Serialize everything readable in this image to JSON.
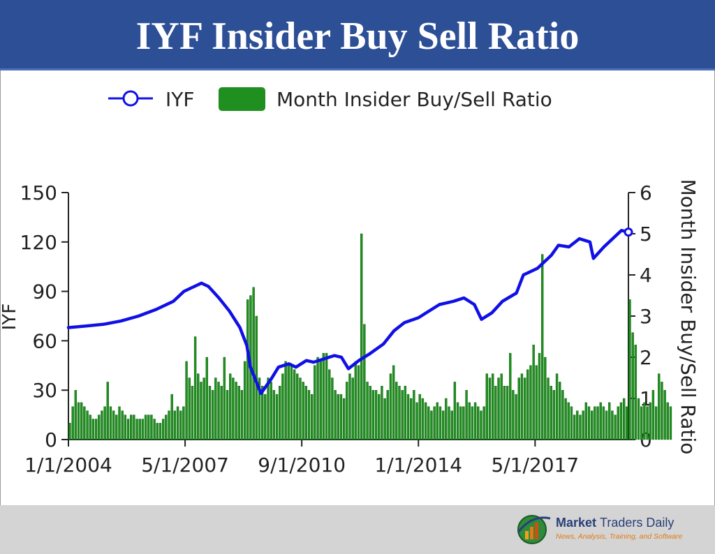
{
  "title": "IYF Insider Buy Sell Ratio",
  "brand": {
    "name_bold": "Market",
    "name_light": "Traders Daily",
    "tagline": "News, Analysis, Training, and Software"
  },
  "colors": {
    "title_bg": "#2d4f96",
    "line": "#1010e6",
    "bars": "#1f8f1f",
    "footer_bg": "#d4d4d4"
  },
  "chart_data": {
    "type": "bar+line",
    "legend": [
      {
        "name": "IYF",
        "kind": "line-marker",
        "color": "#1010e6"
      },
      {
        "name": "Month Insider Buy/Sell Ratio",
        "kind": "bar",
        "color": "#1f8f1f"
      }
    ],
    "legend_position": "top-center",
    "x_ticks": [
      "1/1/2004",
      "5/1/2007",
      "9/1/2010",
      "1/1/2014",
      "5/1/2017"
    ],
    "x_range": [
      "1/1/2004",
      "1/1/2020"
    ],
    "y_left": {
      "label": "IYF",
      "ticks": [
        "0",
        "30",
        "60",
        "90",
        "120",
        "150"
      ],
      "range": [
        0,
        150
      ]
    },
    "y_right": {
      "label": "Month Insider Buy/Sell Ratio",
      "ticks": [
        "0",
        "1",
        "2",
        "3",
        "4",
        "5",
        "6"
      ],
      "range": [
        0,
        6
      ]
    },
    "grid": false,
    "iyf_series": {
      "name": "IYF",
      "x_year": [
        2004.0,
        2004.5,
        2005.0,
        2005.5,
        2006.0,
        2006.5,
        2007.0,
        2007.3,
        2007.5,
        2007.8,
        2008.0,
        2008.3,
        2008.6,
        2008.9,
        2009.1,
        2009.2,
        2009.5,
        2009.8,
        2010.0,
        2010.3,
        2010.5,
        2010.8,
        2011.0,
        2011.3,
        2011.6,
        2011.8,
        2012.0,
        2012.3,
        2012.6,
        2013.0,
        2013.3,
        2013.6,
        2014.0,
        2014.3,
        2014.6,
        2015.0,
        2015.3,
        2015.6,
        2015.8,
        2016.1,
        2016.4,
        2016.8,
        2017.0,
        2017.4,
        2017.8,
        2018.0,
        2018.3,
        2018.6,
        2018.9,
        2019.0,
        2019.3,
        2019.6,
        2019.8,
        2020.0
      ],
      "values": [
        68,
        69,
        70,
        72,
        75,
        79,
        84,
        90,
        92,
        95,
        93,
        86,
        78,
        68,
        57,
        44,
        28,
        37,
        44,
        46,
        44,
        48,
        47,
        49,
        51,
        50,
        43,
        48,
        52,
        58,
        66,
        71,
        74,
        78,
        82,
        84,
        86,
        82,
        73,
        77,
        84,
        89,
        100,
        104,
        112,
        118,
        117,
        122,
        120,
        110,
        117,
        123,
        127,
        126
      ]
    },
    "ratio_series": {
      "name": "Month Insider Buy/Sell Ratio",
      "start": "1/1/2004",
      "interval": "month",
      "values": [
        0.4,
        0.8,
        1.2,
        0.9,
        0.9,
        0.8,
        0.7,
        0.6,
        0.5,
        0.5,
        0.6,
        0.7,
        0.8,
        1.4,
        0.8,
        0.7,
        0.6,
        0.8,
        0.7,
        0.6,
        0.5,
        0.6,
        0.6,
        0.5,
        0.5,
        0.5,
        0.6,
        0.6,
        0.6,
        0.5,
        0.4,
        0.4,
        0.5,
        0.6,
        0.7,
        1.1,
        0.7,
        0.8,
        0.7,
        0.8,
        1.9,
        1.5,
        1.3,
        2.5,
        1.6,
        1.4,
        1.5,
        2.0,
        1.3,
        1.2,
        1.5,
        1.4,
        1.3,
        2.0,
        1.2,
        1.6,
        1.5,
        1.4,
        1.3,
        1.2,
        1.9,
        3.4,
        3.5,
        3.7,
        3.0,
        1.5,
        1.3,
        1.1,
        1.5,
        1.4,
        1.2,
        1.1,
        1.3,
        1.6,
        1.9,
        1.8,
        1.8,
        1.7,
        1.6,
        1.5,
        1.4,
        1.3,
        1.2,
        1.1,
        1.8,
        2.0,
        1.9,
        2.1,
        2.1,
        1.7,
        1.5,
        1.2,
        1.1,
        1.1,
        1.0,
        1.4,
        1.6,
        1.5,
        1.9,
        1.8,
        5.0,
        2.8,
        1.4,
        1.3,
        1.2,
        1.2,
        1.1,
        1.3,
        1.0,
        1.2,
        1.6,
        1.8,
        1.4,
        1.3,
        1.2,
        1.3,
        1.1,
        1.0,
        1.2,
        0.9,
        1.1,
        1.0,
        0.9,
        0.8,
        0.7,
        0.8,
        0.9,
        0.8,
        0.7,
        1.0,
        0.8,
        0.7,
        1.4,
        0.9,
        0.8,
        0.8,
        1.2,
        0.9,
        0.8,
        0.9,
        0.8,
        0.7,
        0.8,
        1.6,
        1.5,
        1.6,
        1.3,
        1.5,
        1.6,
        1.3,
        1.3,
        2.1,
        1.2,
        1.1,
        1.5,
        1.6,
        1.5,
        1.7,
        1.8,
        2.3,
        1.8,
        2.1,
        4.5,
        2.0,
        1.5,
        1.3,
        1.2,
        1.6,
        1.4,
        1.2,
        1.0,
        0.9,
        0.8,
        0.6,
        0.7,
        0.6,
        0.7,
        0.9,
        0.8,
        0.7,
        0.8,
        0.8,
        0.9,
        0.8,
        0.7,
        0.9,
        0.7,
        0.6,
        0.8,
        0.9,
        1.0,
        0.8,
        3.4,
        2.6,
        2.3,
        1.0,
        0.8,
        0.9,
        0.8,
        0.9,
        1.2,
        0.8,
        1.6,
        1.4,
        1.2,
        0.9,
        0.8
      ]
    }
  }
}
